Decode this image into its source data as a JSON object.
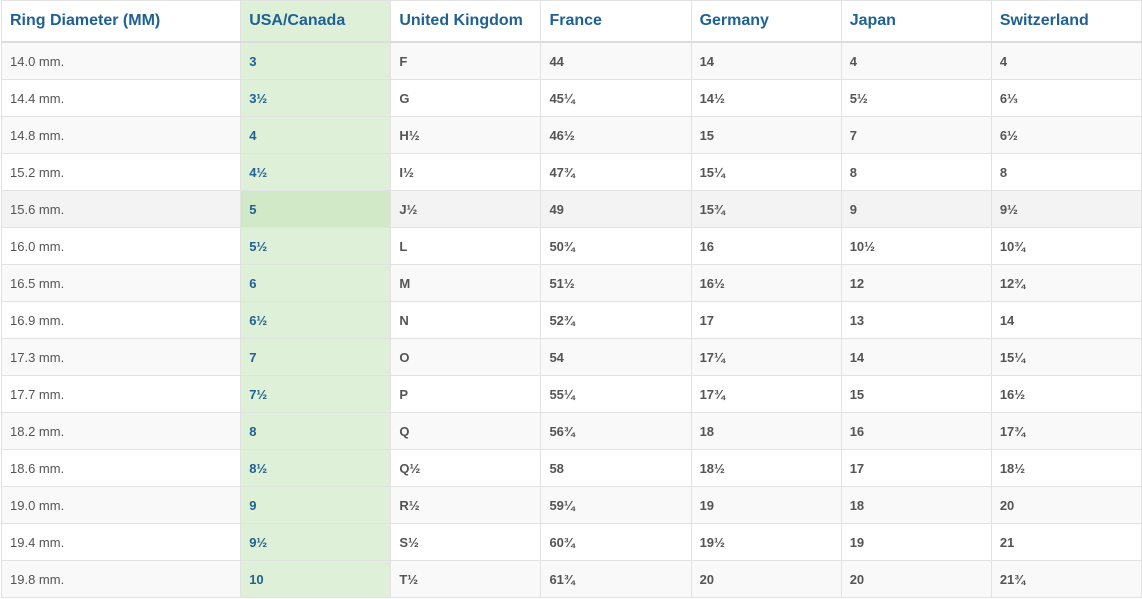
{
  "headers": [
    "Ring Diameter (MM)",
    "USA/Canada",
    "United Kingdom",
    "France",
    "Germany",
    "Japan",
    "Switzerland"
  ],
  "rows": [
    [
      "14.0 mm.",
      "3",
      "F",
      "44",
      "14",
      "4",
      "4"
    ],
    [
      "14.4 mm.",
      "3½",
      "G",
      "45¼",
      "14½",
      "5½",
      "6⅓"
    ],
    [
      "14.8 mm.",
      "4",
      "H½",
      "46½",
      "15",
      "7",
      "6½"
    ],
    [
      "15.2 mm.",
      "4½",
      "I½",
      "47¾",
      "15¼",
      "8",
      "8"
    ],
    [
      "15.6 mm.",
      "5",
      "J½",
      "49",
      "15¾",
      "9",
      "9½"
    ],
    [
      "16.0 mm.",
      "5½",
      "L",
      "50¾",
      "16",
      "10½",
      "10¾"
    ],
    [
      "16.5 mm.",
      "6",
      "M",
      "51½",
      "16½",
      "12",
      "12¾"
    ],
    [
      "16.9 mm.",
      "6½",
      "N",
      "52¾",
      "17",
      "13",
      "14"
    ],
    [
      "17.3 mm.",
      "7",
      "O",
      "54",
      "17¼",
      "14",
      "15¼"
    ],
    [
      "17.7 mm.",
      "7½",
      "P",
      "55¼",
      "17¾",
      "15",
      "16½"
    ],
    [
      "18.2 mm.",
      "8",
      "Q",
      "56¾",
      "18",
      "16",
      "17¾"
    ],
    [
      "18.6 mm.",
      "8½",
      "Q½",
      "58",
      "18½",
      "17",
      "18½"
    ],
    [
      "19.0 mm.",
      "9",
      "R½",
      "59¼",
      "19",
      "18",
      "20"
    ],
    [
      "19.4 mm.",
      "9½",
      "S½",
      "60¾",
      "19½",
      "19",
      "21"
    ],
    [
      "19.8 mm.",
      "10",
      "T½",
      "61¾",
      "20",
      "20",
      "21¾"
    ]
  ],
  "highlighted_row": 4,
  "colors": {
    "header_text": "#1f6192",
    "highlight_column": "#dff0d8"
  }
}
